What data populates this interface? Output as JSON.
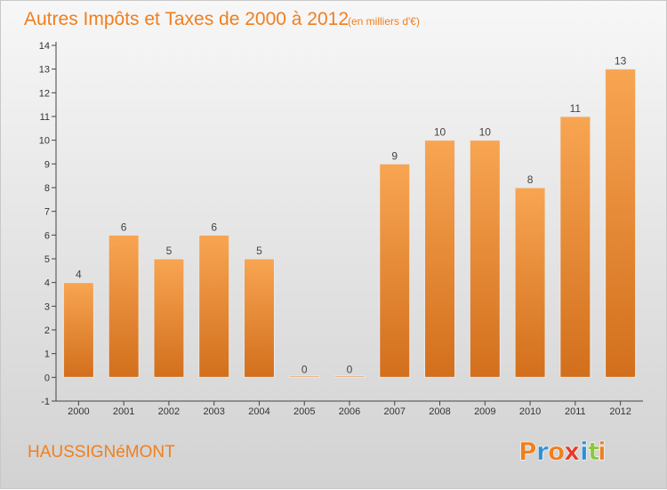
{
  "chart_data": {
    "type": "bar",
    "title": "Autres Impôts et Taxes de 2000 à 2012",
    "subtitle": "(en milliers d'€)",
    "xlabel": "",
    "ylabel": "",
    "categories": [
      "2000",
      "2001",
      "2002",
      "2003",
      "2004",
      "2005",
      "2006",
      "2007",
      "2008",
      "2009",
      "2010",
      "2011",
      "2012"
    ],
    "values": [
      4,
      6,
      5,
      6,
      5,
      0,
      0,
      9,
      10,
      10,
      8,
      11,
      13
    ],
    "data_labels": [
      "4",
      "6",
      "5",
      "6",
      "5",
      "0",
      "0",
      "9",
      "10",
      "10",
      "8",
      "11",
      "13"
    ],
    "y_ticks": [
      "-1",
      "0",
      "1",
      "2",
      "3",
      "4",
      "5",
      "6",
      "7",
      "8",
      "9",
      "10",
      "11",
      "12",
      "13",
      "14"
    ],
    "ylim": [
      -1,
      14
    ],
    "grid": false,
    "bar_color": "#f0913a"
  },
  "footer": {
    "commune": "HAUSSIGNéMONT",
    "logo_letters": [
      "P",
      "r",
      "o",
      "x",
      "i",
      "t",
      "i"
    ],
    "logo_colors": [
      "#f07f1e",
      "#2f8fd6",
      "#f07f1e",
      "#e53a2a",
      "#2f8fd6",
      "#8cc63f",
      "#f07f1e"
    ]
  }
}
